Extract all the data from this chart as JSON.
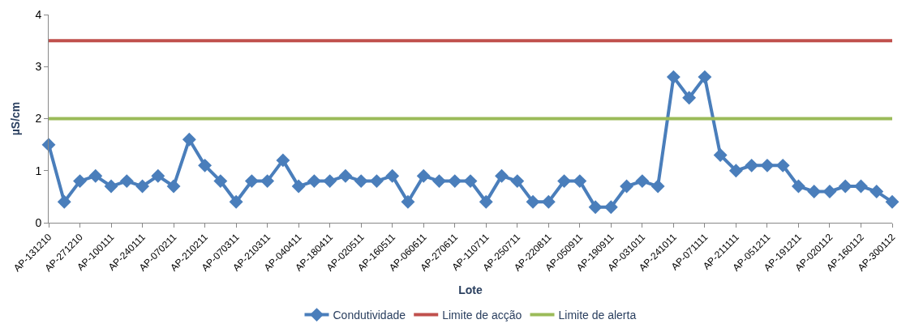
{
  "chart_data": {
    "type": "line",
    "xlabel": "Lote",
    "ylabel": "µS/cm",
    "categories": [
      "AP-131210",
      null,
      "AP-271210",
      null,
      "AP-100111",
      null,
      "AP-240111",
      null,
      "AP-070211",
      null,
      "AP-210211",
      null,
      "AP-070311",
      null,
      "AP-210311",
      null,
      "AP-040411",
      null,
      "AP-180411",
      null,
      "AP-020511",
      null,
      "AP-160511",
      null,
      "AP-060611",
      null,
      "AP-270611",
      null,
      "AP-110711",
      null,
      "AP-250711",
      null,
      "AP-220811",
      null,
      "AP-050911",
      null,
      "AP-190911",
      null,
      "AP-031011",
      null,
      "AP-241011",
      null,
      "AP-071111",
      null,
      "AP-211111",
      null,
      "AP-051211",
      null,
      "AP-191211",
      null,
      "AP-020112",
      null,
      "AP-160112",
      null,
      "AP-300112"
    ],
    "series": [
      {
        "name": "Condutividade",
        "color": "#4a7ebb",
        "marker": "diamond",
        "values": [
          1.5,
          0.4,
          0.8,
          0.9,
          0.7,
          0.8,
          0.7,
          0.9,
          0.7,
          1.6,
          1.1,
          0.8,
          0.4,
          0.8,
          0.8,
          1.2,
          0.7,
          0.8,
          0.8,
          0.9,
          0.8,
          0.8,
          0.9,
          0.4,
          0.9,
          0.8,
          0.8,
          0.8,
          0.4,
          0.9,
          0.8,
          0.4,
          0.4,
          0.8,
          0.8,
          0.3,
          0.3,
          0.7,
          0.8,
          0.7,
          2.8,
          2.4,
          2.8,
          1.3,
          1.0,
          1.1,
          1.1,
          1.1,
          0.7,
          0.6,
          0.6,
          0.7,
          0.7,
          0.6,
          0.4
        ]
      },
      {
        "name": "Limite de acção",
        "color": "#c0504d",
        "marker": "none",
        "values": [
          3.5,
          3.5,
          3.5,
          3.5,
          3.5,
          3.5,
          3.5,
          3.5,
          3.5,
          3.5,
          3.5,
          3.5,
          3.5,
          3.5,
          3.5,
          3.5,
          3.5,
          3.5,
          3.5,
          3.5,
          3.5,
          3.5,
          3.5,
          3.5,
          3.5,
          3.5,
          3.5,
          3.5,
          3.5,
          3.5,
          3.5,
          3.5,
          3.5,
          3.5,
          3.5,
          3.5,
          3.5,
          3.5,
          3.5,
          3.5,
          3.5,
          3.5,
          3.5,
          3.5,
          3.5,
          3.5,
          3.5,
          3.5,
          3.5,
          3.5,
          3.5,
          3.5,
          3.5,
          3.5,
          3.5
        ]
      },
      {
        "name": "Limite de alerta",
        "color": "#9bbb59",
        "marker": "none",
        "values": [
          2,
          2,
          2,
          2,
          2,
          2,
          2,
          2,
          2,
          2,
          2,
          2,
          2,
          2,
          2,
          2,
          2,
          2,
          2,
          2,
          2,
          2,
          2,
          2,
          2,
          2,
          2,
          2,
          2,
          2,
          2,
          2,
          2,
          2,
          2,
          2,
          2,
          2,
          2,
          2,
          2,
          2,
          2,
          2,
          2,
          2,
          2,
          2,
          2,
          2,
          2,
          2,
          2,
          2,
          2
        ]
      }
    ],
    "ylim": [
      0,
      4
    ],
    "yticks": [
      0,
      1,
      2,
      3,
      4
    ],
    "legend": "bottom",
    "line_style": "solid"
  }
}
